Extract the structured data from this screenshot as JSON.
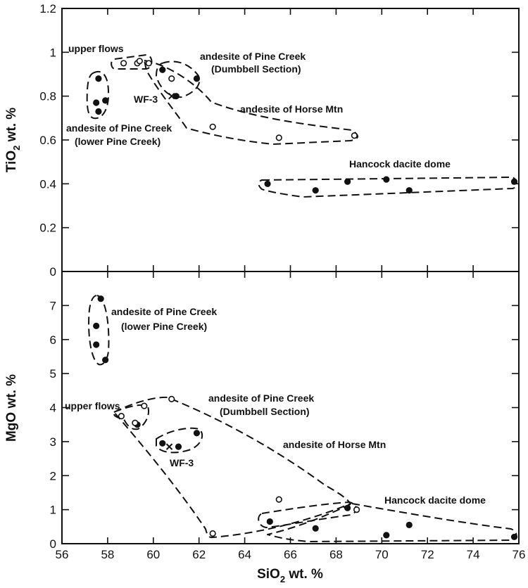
{
  "chart_data": [
    {
      "type": "scatter",
      "panel": "top",
      "xlabel": "SiO2 wt. %",
      "ylabel": "TiO2 wt. %",
      "xlim": [
        56,
        76
      ],
      "ylim": [
        0,
        1.2
      ],
      "y_ticks": [
        "0",
        "0.2",
        "0.4",
        "0.6",
        "0.8",
        "1",
        "1.2"
      ],
      "grid": false,
      "annotations": [
        "upper flows",
        "andesite of Pine Creek",
        "(Dumbbell Section)",
        "WF-3",
        "andesite of Horse Mtn",
        "andesite of Pine Creek",
        "(lower Pine Creek)",
        "Hancock dacite dome"
      ],
      "series": [
        {
          "marker": "filled",
          "points": [
            [
              57.6,
              0.88
            ],
            [
              57.5,
              0.77
            ],
            [
              57.9,
              0.78
            ],
            [
              57.6,
              0.73
            ],
            [
              60.4,
              0.92
            ],
            [
              61.0,
              0.8
            ],
            [
              61.9,
              0.88
            ],
            [
              65.0,
              0.4
            ],
            [
              67.1,
              0.37
            ],
            [
              68.5,
              0.41
            ],
            [
              70.2,
              0.42
            ],
            [
              71.2,
              0.37
            ],
            [
              75.8,
              0.41
            ]
          ]
        },
        {
          "marker": "open",
          "points": [
            [
              58.7,
              0.95
            ],
            [
              59.3,
              0.95
            ],
            [
              59.4,
              0.96
            ],
            [
              59.8,
              0.95
            ],
            [
              60.8,
              0.88
            ],
            [
              62.6,
              0.66
            ],
            [
              65.5,
              0.61
            ],
            [
              68.8,
              0.62
            ]
          ]
        },
        {
          "marker": "cross",
          "points": [
            [
              60.8,
              0.8
            ]
          ]
        }
      ]
    },
    {
      "type": "scatter",
      "panel": "bottom",
      "xlabel": "SiO2 wt. %",
      "ylabel": "MgO wt. %",
      "xlim": [
        56,
        76
      ],
      "ylim": [
        0,
        8
      ],
      "x_ticks": [
        "56",
        "58",
        "60",
        "62",
        "64",
        "66",
        "68",
        "70",
        "72",
        "74",
        "76"
      ],
      "y_ticks": [
        "0",
        "1",
        "2",
        "3",
        "4",
        "5",
        "6",
        "7"
      ],
      "grid": false,
      "annotations": [
        "andesite of Pine Creek",
        "(lower Pine Creek)",
        "upper flows",
        "andesite of Pine Creek",
        "(Dumbbell Section)",
        "andesite of Horse Mtn",
        "WF-3",
        "Hancock dacite dome"
      ],
      "series": [
        {
          "marker": "filled",
          "points": [
            [
              57.7,
              7.2
            ],
            [
              57.5,
              6.4
            ],
            [
              57.5,
              5.85
            ],
            [
              57.9,
              5.4
            ],
            [
              59.3,
              3.5
            ],
            [
              60.4,
              2.95
            ],
            [
              61.1,
              2.85
            ],
            [
              61.9,
              3.25
            ],
            [
              65.1,
              0.65
            ],
            [
              67.1,
              0.45
            ],
            [
              68.5,
              1.05
            ],
            [
              70.2,
              0.25
            ],
            [
              71.2,
              0.55
            ],
            [
              75.8,
              0.2
            ]
          ]
        },
        {
          "marker": "open",
          "points": [
            [
              58.6,
              3.75
            ],
            [
              59.2,
              3.55
            ],
            [
              59.6,
              4.05
            ],
            [
              60.8,
              4.25
            ],
            [
              62.6,
              0.3
            ],
            [
              65.5,
              1.3
            ],
            [
              68.9,
              1.0
            ]
          ]
        },
        {
          "marker": "cross",
          "points": [
            [
              60.7,
              2.85
            ]
          ]
        }
      ]
    }
  ]
}
